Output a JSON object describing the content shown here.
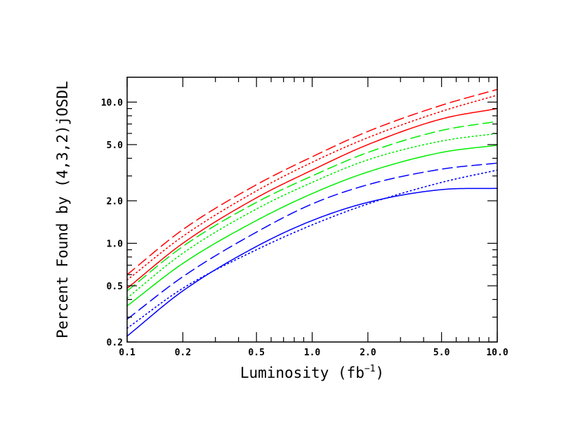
{
  "chart_data": {
    "type": "line",
    "xlabel_main": "Luminosity (fb",
    "xlabel_sup": "−1",
    "xlabel_close": ")",
    "ylabel": "Percent Found by (4,3,2)jOSDL",
    "x_scale": "log",
    "y_scale": "log",
    "xlim": [
      0.1,
      10.0
    ],
    "ylim": [
      0.2,
      15.0
    ],
    "x_tick_labels": [
      "0.1",
      "0.2",
      "0.5",
      "1.0",
      "2.0",
      "5.0",
      "10.0"
    ],
    "x_ticks": [
      0.1,
      0.2,
      0.5,
      1.0,
      2.0,
      5.0,
      10.0
    ],
    "y_tick_labels": [
      "0.2",
      "0.5",
      "1.0",
      "2.0",
      "5.0",
      "10.0"
    ],
    "y_ticks": [
      0.2,
      0.5,
      1.0,
      2.0,
      5.0,
      10.0
    ],
    "grid": false,
    "x": [
      0.1,
      0.2,
      0.5,
      1.0,
      2.0,
      5.0,
      10.0
    ],
    "series": [
      {
        "color": "#ff0000",
        "style": "solid",
        "values": [
          0.48,
          1.0,
          2.1,
          3.3,
          5.0,
          7.6,
          9.0
        ]
      },
      {
        "color": "#ff0000",
        "style": "dashed",
        "values": [
          0.6,
          1.25,
          2.6,
          4.1,
          6.2,
          9.5,
          12.3
        ]
      },
      {
        "color": "#ff0000",
        "style": "dotted",
        "values": [
          0.55,
          1.12,
          2.35,
          3.75,
          5.6,
          8.6,
          11.2
        ]
      },
      {
        "color": "#00ee00",
        "style": "solid",
        "values": [
          0.36,
          0.72,
          1.45,
          2.25,
          3.2,
          4.4,
          4.95
        ]
      },
      {
        "color": "#00ee00",
        "style": "dashed",
        "values": [
          0.46,
          0.95,
          1.95,
          3.0,
          4.4,
          6.3,
          7.3
        ]
      },
      {
        "color": "#00ee00",
        "style": "dotted",
        "values": [
          0.41,
          0.85,
          1.75,
          2.7,
          3.9,
          5.3,
          6.0
        ]
      },
      {
        "color": "#0000ff",
        "style": "solid",
        "values": [
          0.22,
          0.46,
          0.95,
          1.45,
          1.95,
          2.4,
          2.45
        ]
      },
      {
        "color": "#0000ff",
        "style": "dashed",
        "values": [
          0.29,
          0.58,
          1.2,
          1.9,
          2.6,
          3.35,
          3.7
        ]
      },
      {
        "color": "#0000ff",
        "style": "dotted",
        "values": [
          0.25,
          0.48,
          0.9,
          1.35,
          1.9,
          2.7,
          3.3
        ]
      }
    ]
  }
}
